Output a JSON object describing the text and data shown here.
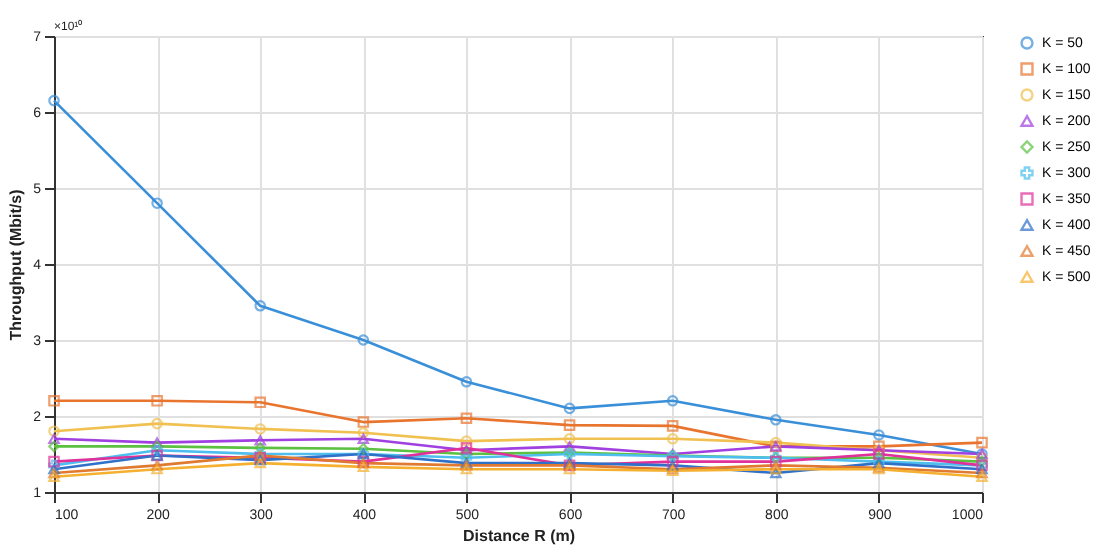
{
  "chart_data": {
    "type": "line",
    "xlabel": "Distance R (m)",
    "ylabel": "Throughput (Mbit/s)",
    "annotations": [
      "×10¹⁰"
    ],
    "x": [
      100,
      200,
      300,
      400,
      500,
      600,
      700,
      800,
      900,
      1000
    ],
    "xlim": [
      100,
      1000
    ],
    "xticks": [
      100,
      200,
      300,
      400,
      500,
      600,
      700,
      800,
      900,
      1000
    ],
    "ylim": [
      1,
      7
    ],
    "yticks": [
      1,
      2,
      3,
      4,
      5,
      6,
      7
    ],
    "grid": true,
    "legend": "right",
    "line_style": "solid",
    "series": [
      {
        "name": "K = 50",
        "color": "#3a8fd9",
        "marker": "circle",
        "values": [
          6.15,
          4.8,
          3.45,
          3.0,
          2.45,
          2.1,
          2.2,
          1.95,
          1.75,
          1.5
        ]
      },
      {
        "name": "K = 100",
        "color": "#e8742e",
        "marker": "square",
        "values": [
          2.2,
          2.2,
          2.18,
          1.92,
          1.97,
          1.88,
          1.87,
          1.6,
          1.6,
          1.65
        ]
      },
      {
        "name": "K = 150",
        "color": "#f0c050",
        "marker": "circle",
        "values": [
          1.8,
          1.9,
          1.83,
          1.78,
          1.67,
          1.7,
          1.7,
          1.65,
          1.55,
          1.45
        ]
      },
      {
        "name": "K = 200",
        "color": "#a040e0",
        "marker": "triangle",
        "values": [
          1.7,
          1.65,
          1.68,
          1.7,
          1.55,
          1.6,
          1.5,
          1.6,
          1.55,
          1.5
        ]
      },
      {
        "name": "K = 250",
        "color": "#5cc040",
        "marker": "diamond",
        "values": [
          1.6,
          1.6,
          1.58,
          1.57,
          1.5,
          1.52,
          1.48,
          1.45,
          1.45,
          1.4
        ]
      },
      {
        "name": "K = 300",
        "color": "#4dbeee",
        "marker": "cross",
        "values": [
          1.35,
          1.55,
          1.5,
          1.5,
          1.45,
          1.5,
          1.47,
          1.45,
          1.4,
          1.35
        ]
      },
      {
        "name": "K = 350",
        "color": "#e0309a",
        "marker": "square",
        "values": [
          1.4,
          1.48,
          1.45,
          1.4,
          1.58,
          1.35,
          1.4,
          1.4,
          1.5,
          1.35
        ]
      },
      {
        "name": "K = 400",
        "color": "#2f70c8",
        "marker": "triangle",
        "values": [
          1.3,
          1.48,
          1.42,
          1.5,
          1.38,
          1.38,
          1.35,
          1.25,
          1.38,
          1.3
        ]
      },
      {
        "name": "K = 450",
        "color": "#e07a30",
        "marker": "triangle",
        "values": [
          1.25,
          1.35,
          1.48,
          1.38,
          1.35,
          1.35,
          1.3,
          1.35,
          1.32,
          1.25
        ]
      },
      {
        "name": "K = 500",
        "color": "#f5b030",
        "marker": "triangle",
        "values": [
          1.2,
          1.3,
          1.38,
          1.33,
          1.3,
          1.3,
          1.28,
          1.3,
          1.3,
          1.2
        ]
      }
    ]
  }
}
